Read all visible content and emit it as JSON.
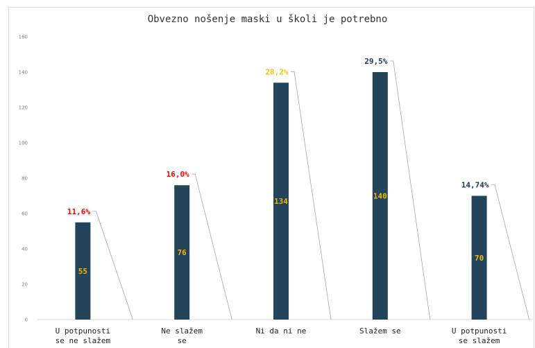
{
  "chart_data": {
    "type": "bar",
    "title": "Obvezno nošenje maski u školi je potrebno",
    "categories": [
      [
        "U potpunosti",
        "se ne slažem"
      ],
      [
        "Ne slažem",
        "se"
      ],
      [
        "Ni da ni ne"
      ],
      [
        "Slažem se"
      ],
      [
        "U potpunosti",
        "se slažem"
      ]
    ],
    "values": [
      55,
      76,
      134,
      140,
      70
    ],
    "percent_labels": [
      "11,6%",
      "16,0%",
      "28,2%",
      "29,5%",
      "14,74%"
    ],
    "percent_colors": [
      "#ff0000",
      "#ff0000",
      "#ffc000",
      "#1f3864",
      "#1f3864"
    ],
    "ylim": [
      0,
      160
    ],
    "yticks": [
      0,
      20,
      40,
      60,
      80,
      100,
      120,
      140,
      160
    ],
    "grid": false,
    "bar_color": "#23445a",
    "value_label_color": "#f2b600",
    "leader_line_color": "#a6a6a6",
    "xlabel": "",
    "ylabel": ""
  }
}
